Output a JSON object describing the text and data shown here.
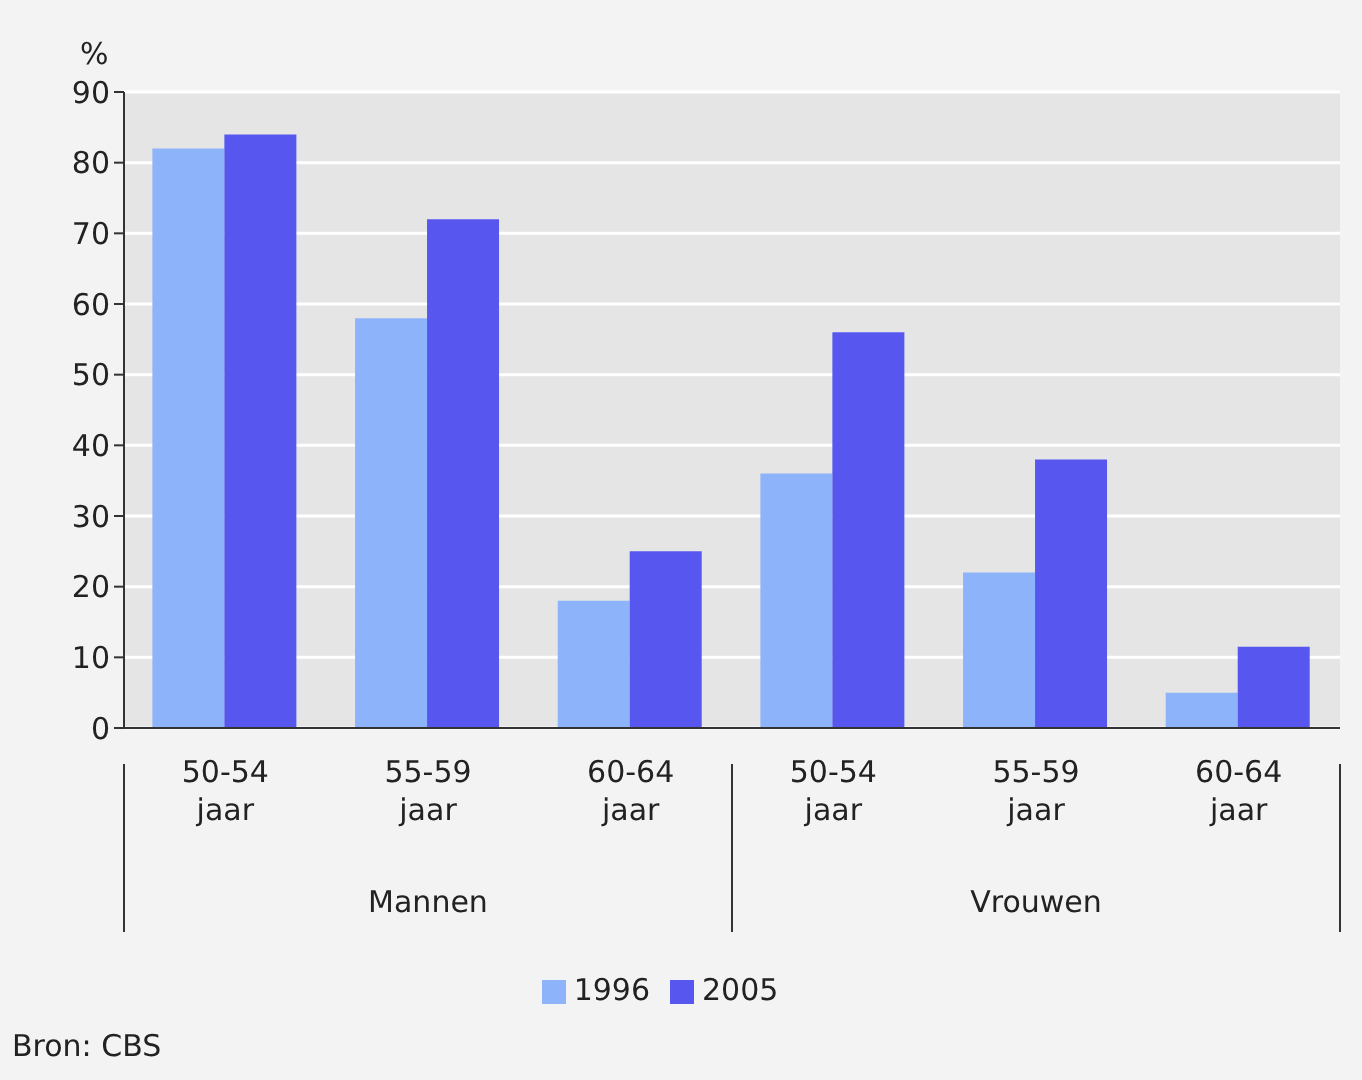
{
  "chart_data": {
    "type": "bar",
    "ylabel": "%",
    "categories": [
      "50-54 jaar",
      "55-59 jaar",
      "60-64 jaar",
      "50-54 jaar",
      "55-59 jaar",
      "60-64 jaar"
    ],
    "series": [
      {
        "name": "1996",
        "color": "#8db4fa",
        "values": [
          82,
          58,
          18,
          36,
          22,
          5
        ]
      },
      {
        "name": "2005",
        "color": "#5757f0",
        "values": [
          84,
          72,
          25,
          56,
          38,
          11.5
        ]
      }
    ],
    "ylim": [
      0,
      90
    ],
    "yticks": [
      0,
      10,
      20,
      30,
      40,
      50,
      60,
      70,
      80,
      90
    ],
    "grid": "y",
    "legend": "bottom",
    "annotations": [
      "Mannen",
      "Vrouwen",
      "Bron: CBS"
    ]
  }
}
